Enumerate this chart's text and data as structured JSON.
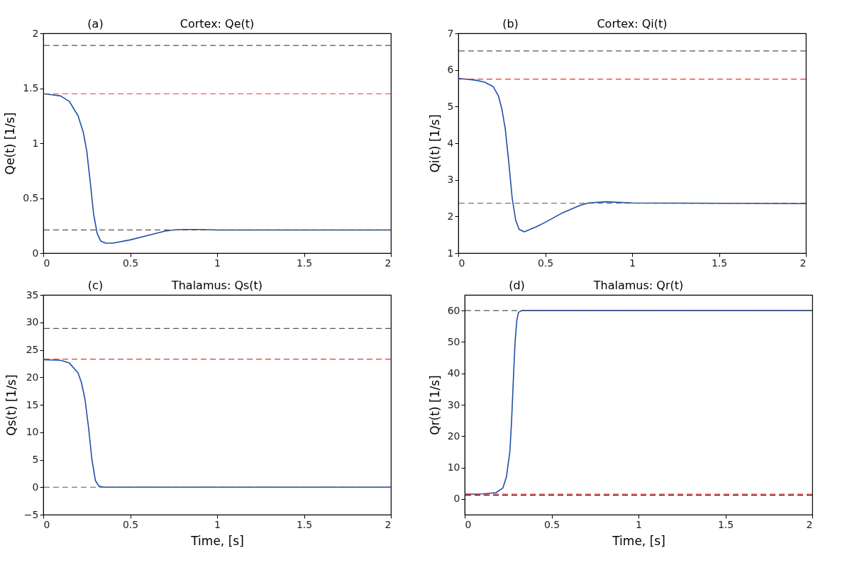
{
  "chart_data": [
    {
      "type": "line",
      "title": "Cortex: Qe(t)",
      "annotations": [
        "(a)"
      ],
      "ylabel": "Qe(t) [1/s]",
      "xlim": [
        0,
        2
      ],
      "xticks": [
        0,
        0.5,
        1,
        1.5,
        2
      ],
      "ylim": [
        0,
        2
      ],
      "yticks": [
        0,
        0.5,
        1,
        1.5,
        2
      ],
      "grid": false,
      "x": [
        0,
        0.05,
        0.1,
        0.15,
        0.2,
        0.23,
        0.25,
        0.27,
        0.29,
        0.31,
        0.33,
        0.36,
        0.4,
        0.5,
        0.6,
        0.7,
        0.75,
        0.8,
        0.9,
        1.0,
        1.5,
        2.0
      ],
      "series": [
        {
          "color": "#1f4fa8",
          "values": [
            1.45,
            1.44,
            1.43,
            1.38,
            1.25,
            1.1,
            0.93,
            0.65,
            0.35,
            0.18,
            0.11,
            0.09,
            0.09,
            0.12,
            0.16,
            0.2,
            0.21,
            0.215,
            0.215,
            0.21,
            0.21,
            0.21
          ]
        }
      ],
      "ref_lines": [
        {
          "axis": "y",
          "value": 1.89,
          "color": "#555555",
          "line_style": "dashed"
        },
        {
          "axis": "y",
          "value": 1.45,
          "color": "#ee3333",
          "line_style": "dashed"
        },
        {
          "axis": "y",
          "value": 0.21,
          "color": "#555555",
          "line_style": "dashed"
        }
      ]
    },
    {
      "type": "line",
      "title": "Cortex: Qi(t)",
      "annotations": [
        "(b)"
      ],
      "ylabel": "Qi(t) [1/s]",
      "xlim": [
        0,
        2
      ],
      "xticks": [
        0,
        0.5,
        1,
        1.5,
        2
      ],
      "ylim": [
        1,
        7
      ],
      "yticks": [
        1,
        2,
        3,
        4,
        5,
        6,
        7
      ],
      "grid": false,
      "x": [
        0,
        0.1,
        0.15,
        0.2,
        0.23,
        0.25,
        0.27,
        0.29,
        0.31,
        0.33,
        0.35,
        0.38,
        0.45,
        0.5,
        0.6,
        0.7,
        0.75,
        0.85,
        1.0,
        1.5,
        2.0
      ],
      "series": [
        {
          "color": "#1f4fa8",
          "values": [
            5.77,
            5.72,
            5.67,
            5.55,
            5.3,
            4.95,
            4.4,
            3.5,
            2.5,
            1.9,
            1.65,
            1.58,
            1.72,
            1.84,
            2.1,
            2.3,
            2.37,
            2.4,
            2.37,
            2.36,
            2.35
          ]
        }
      ],
      "ref_lines": [
        {
          "axis": "y",
          "value": 6.52,
          "color": "#555555",
          "line_style": "dashed"
        },
        {
          "axis": "y",
          "value": 5.75,
          "color": "#ee3333",
          "line_style": "dashed"
        },
        {
          "axis": "y",
          "value": 2.36,
          "color": "#555555",
          "line_style": "dashed"
        }
      ]
    },
    {
      "type": "line",
      "title": "Thalamus: Qs(t)",
      "annotations": [
        "(c)"
      ],
      "xlabel": "Time, [s]",
      "ylabel": "Qs(t) [1/s]",
      "xlim": [
        0,
        2
      ],
      "xticks": [
        0,
        0.5,
        1,
        1.5,
        2
      ],
      "ylim": [
        -5,
        35
      ],
      "yticks": [
        {
          "value": -5,
          "label": "−5"
        },
        0,
        5,
        10,
        15,
        20,
        25,
        30,
        35
      ],
      "grid": false,
      "x": [
        0,
        0.1,
        0.15,
        0.2,
        0.22,
        0.24,
        0.26,
        0.28,
        0.3,
        0.32,
        0.35,
        2.0
      ],
      "series": [
        {
          "color": "#1f4fa8",
          "values": [
            23.2,
            23.1,
            22.6,
            20.8,
            19,
            16,
            11,
            5,
            1.2,
            0.2,
            0,
            0
          ]
        }
      ],
      "ref_lines": [
        {
          "axis": "y",
          "value": 28.9,
          "color": "#555555",
          "line_style": "dashed"
        },
        {
          "axis": "y",
          "value": 23.3,
          "color": "#ee3333",
          "line_style": "dashed"
        },
        {
          "axis": "y",
          "value": 0,
          "color": "#555555",
          "line_style": "dashed"
        }
      ]
    },
    {
      "type": "line",
      "title": "Thalamus: Qr(t)",
      "annotations": [
        "(d)"
      ],
      "xlabel": "Time, [s]",
      "ylabel": "Qr(t) [1/s]",
      "xlim": [
        0,
        2
      ],
      "xticks": [
        0,
        0.5,
        1,
        1.5,
        2
      ],
      "ylim": [
        -5,
        65
      ],
      "yticks": [
        0,
        10,
        20,
        30,
        40,
        50,
        60
      ],
      "grid": false,
      "x": [
        0,
        0.1,
        0.18,
        0.22,
        0.24,
        0.26,
        0.27,
        0.28,
        0.29,
        0.3,
        0.31,
        0.33,
        2.0
      ],
      "series": [
        {
          "color": "#1f4fa8",
          "values": [
            1.5,
            1.6,
            2,
            3.5,
            7,
            15,
            25,
            38,
            50,
            57,
            59.5,
            60,
            60
          ]
        }
      ],
      "ref_lines": [
        {
          "axis": "y",
          "value": 60,
          "color": "#555555",
          "line_style": "dashed"
        },
        {
          "axis": "y",
          "value": 1.2,
          "color": "#333333",
          "line_style": "dashed"
        },
        {
          "axis": "y",
          "value": 1.5,
          "color": "#ee3333",
          "line_style": "dashed"
        }
      ]
    }
  ]
}
